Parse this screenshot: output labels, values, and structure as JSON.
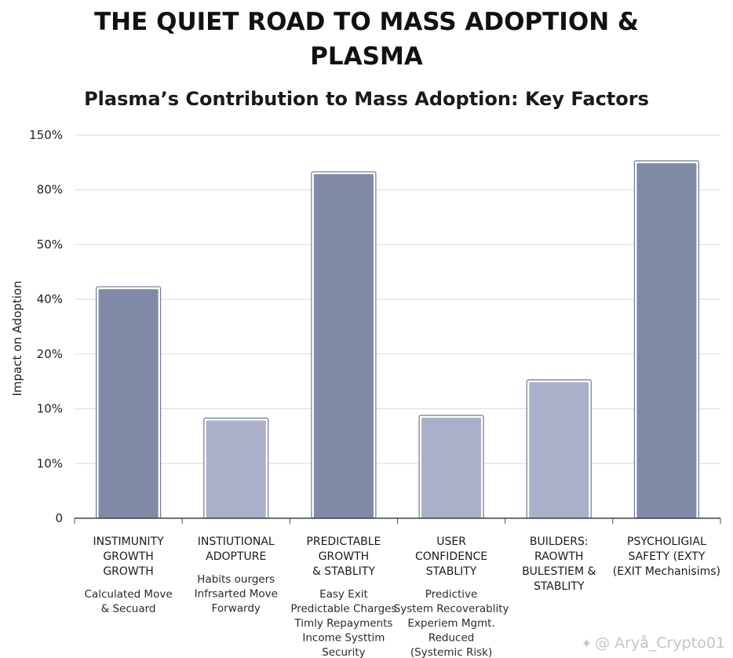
{
  "header": {
    "title_line1": "THE QUIET ROAD TO MASS ADOPTION &",
    "title_line2": "PLASMA"
  },
  "chart_data": {
    "type": "bar",
    "title": "Plasma’s Contribution to Mass Adoption: Key Factors",
    "xlabel": "",
    "ylabel": "Impact on Adoption",
    "yticks": [
      "0",
      "10%",
      "10%",
      "20%",
      "40%",
      "50%",
      "80%",
      "150%"
    ],
    "ytick_levels": [
      0,
      1,
      2,
      3,
      4,
      5,
      6,
      7
    ],
    "ylim": [
      0,
      7
    ],
    "categories": [
      {
        "head": [
          "INSTIMUNITY",
          "GROWTH",
          "GROWTH"
        ],
        "desc": [
          "Calculated Move",
          "& Secuard"
        ]
      },
      {
        "head": [
          "INSTIUTIONAL",
          "ADOPTURE"
        ],
        "desc": [
          "Habits ourgers",
          "Infrsarted Move",
          "Forwardy"
        ]
      },
      {
        "head": [
          "PREDICTABLE",
          "GROWTH",
          "& STABLITY"
        ],
        "desc": [
          "Easy Exit",
          "Predictable Charges",
          "Timly Repayments",
          "Income Systtim",
          "Security"
        ]
      },
      {
        "head": [
          "USER",
          "CONFIDENCE",
          "STABLITY"
        ],
        "desc": [
          "Predictive",
          "System Recoverablity",
          "Experiem Mgmt.",
          "Reduced",
          "(Systemic Risk)"
        ]
      },
      {
        "head": [
          "BUILDERS:",
          "RAOWTH",
          "BULESTIEM &",
          "STABLITY"
        ],
        "desc": []
      },
      {
        "head": [
          "PSYCHOLIGIAL",
          "SAFETY (EXTY",
          "(EXIT Mechanisims)"
        ],
        "desc": []
      }
    ],
    "values": [
      4.2,
      1.8,
      6.3,
      1.85,
      2.5,
      6.5
    ],
    "bar_colors": [
      "#7f8aa7",
      "#a9b0c7",
      "#7f8aa7",
      "#a9b0c7",
      "#a9b0c7",
      "#7f8aa7"
    ],
    "grid": true
  },
  "watermark": {
    "icon": "bird-icon",
    "text": "@ Aryå_Crypto01"
  }
}
